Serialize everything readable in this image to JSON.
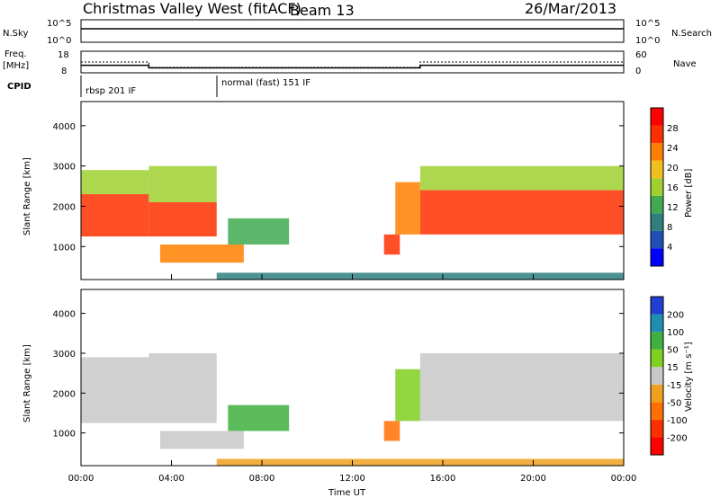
{
  "header": {
    "station": "Christmas Valley West (fitACF)",
    "beam": "Beam 13",
    "date": "26/Mar/2013"
  },
  "time_axis": {
    "label": "Time UT",
    "ticks": [
      "00:00",
      "04:00",
      "08:00",
      "12:00",
      "16:00",
      "20:00",
      "00:00"
    ]
  },
  "top_panels": {
    "nsky": {
      "label": "N.Sky",
      "ticks": [
        "10^5",
        "10^0"
      ],
      "right_ticks": [
        "10^5",
        "10^0"
      ],
      "right_label": "N.Search"
    },
    "freq": {
      "label_line1": "Freq.",
      "label_line2": "[MHz]",
      "ticks": [
        "18",
        "8"
      ],
      "right_ticks": [
        "60",
        "0"
      ],
      "right_label": "Nave"
    },
    "cpid": {
      "label": "CPID",
      "segments": [
        "rbsp 201 IF",
        "normal (fast) 151 IF"
      ]
    }
  },
  "power_panel": {
    "ylabel": "Slant Range [km]",
    "yticks": [
      "1000",
      "2000",
      "3000",
      "4000"
    ],
    "colorbar_label": "Power [dB]",
    "colorbar_ticks": [
      "28",
      "24",
      "20",
      "16",
      "12",
      "8",
      "4"
    ],
    "colors": [
      "#0000ff",
      "#1f4fb4",
      "#2f7f7f",
      "#3faa50",
      "#9fd030",
      "#f0c020",
      "#ff8000",
      "#ff3000",
      "#ff0000"
    ]
  },
  "velocity_panel": {
    "ylabel": "Slant Range [km]",
    "yticks": [
      "1000",
      "2000",
      "3000",
      "4000"
    ],
    "colorbar_label": "Velocity [m s⁻¹]",
    "colorbar_ticks": [
      "200",
      "100",
      "50",
      "15",
      "-15",
      "-50",
      "-100",
      "-200"
    ],
    "colors": [
      "#1f3fd0",
      "#1f8fb0",
      "#40b040",
      "#7fd020",
      "#c8c8c8",
      "#f0a020",
      "#ff7000",
      "#ff3000",
      "#ff0000"
    ]
  },
  "chart_data": {
    "type": "heatmap",
    "x_range_hours": [
      0,
      24
    ],
    "y_range_km": [
      180,
      4600
    ],
    "power_regions": [
      {
        "t0": 0.0,
        "t1": 3.0,
        "r0": 1250,
        "r1": 2300,
        "db": 26
      },
      {
        "t0": 0.0,
        "t1": 3.0,
        "r0": 2300,
        "r1": 2900,
        "db": 16
      },
      {
        "t0": 3.0,
        "t1": 6.0,
        "r0": 1250,
        "r1": 2100,
        "db": 26
      },
      {
        "t0": 3.0,
        "t1": 6.0,
        "r0": 2100,
        "r1": 3000,
        "db": 14
      },
      {
        "t0": 3.5,
        "t1": 7.2,
        "r0": 600,
        "r1": 1050,
        "db": 24
      },
      {
        "t0": 6.5,
        "t1": 9.2,
        "r0": 1050,
        "r1": 1700,
        "db": 10
      },
      {
        "t0": 13.4,
        "t1": 14.1,
        "r0": 800,
        "r1": 1300,
        "db": 28
      },
      {
        "t0": 13.9,
        "t1": 15.0,
        "r0": 1300,
        "r1": 2600,
        "db": 22
      },
      {
        "t0": 15.0,
        "t1": 24.0,
        "r0": 1300,
        "r1": 2400,
        "db": 26
      },
      {
        "t0": 15.0,
        "t1": 24.0,
        "r0": 2400,
        "r1": 3000,
        "db": 14
      },
      {
        "t0": 6.0,
        "t1": 24.0,
        "r0": 180,
        "r1": 350,
        "db": 8
      }
    ],
    "velocity_regions": [
      {
        "t0": 0.0,
        "t1": 3.0,
        "r0": 1250,
        "r1": 2900,
        "v": 0
      },
      {
        "t0": 3.0,
        "t1": 6.0,
        "r0": 1250,
        "r1": 3000,
        "v": 0
      },
      {
        "t0": 3.5,
        "t1": 7.2,
        "r0": 600,
        "r1": 1050,
        "v": 0
      },
      {
        "t0": 6.5,
        "t1": 9.2,
        "r0": 1050,
        "r1": 1700,
        "v": 60
      },
      {
        "t0": 13.4,
        "t1": 14.1,
        "r0": 800,
        "r1": 1300,
        "v": -60
      },
      {
        "t0": 13.9,
        "t1": 15.0,
        "r0": 1300,
        "r1": 2600,
        "v": 30
      },
      {
        "t0": 15.0,
        "t1": 24.0,
        "r0": 1300,
        "r1": 3000,
        "v": 0
      },
      {
        "t0": 6.0,
        "t1": 24.0,
        "r0": 180,
        "r1": 350,
        "v": -40
      }
    ],
    "nsky_level": 3,
    "freq_mhz": [
      {
        "t0": 0,
        "t1": 3.0,
        "f": 11.5
      },
      {
        "t0": 3.0,
        "t1": 15.0,
        "f": 10.3
      },
      {
        "t0": 15.0,
        "t1": 24,
        "f": 11.5
      }
    ],
    "nave": [
      {
        "t0": 0,
        "t1": 3.0,
        "n": 30
      },
      {
        "t0": 3.0,
        "t1": 15.0,
        "n": 15
      },
      {
        "t0": 15.0,
        "t1": 24,
        "n": 30
      }
    ]
  }
}
